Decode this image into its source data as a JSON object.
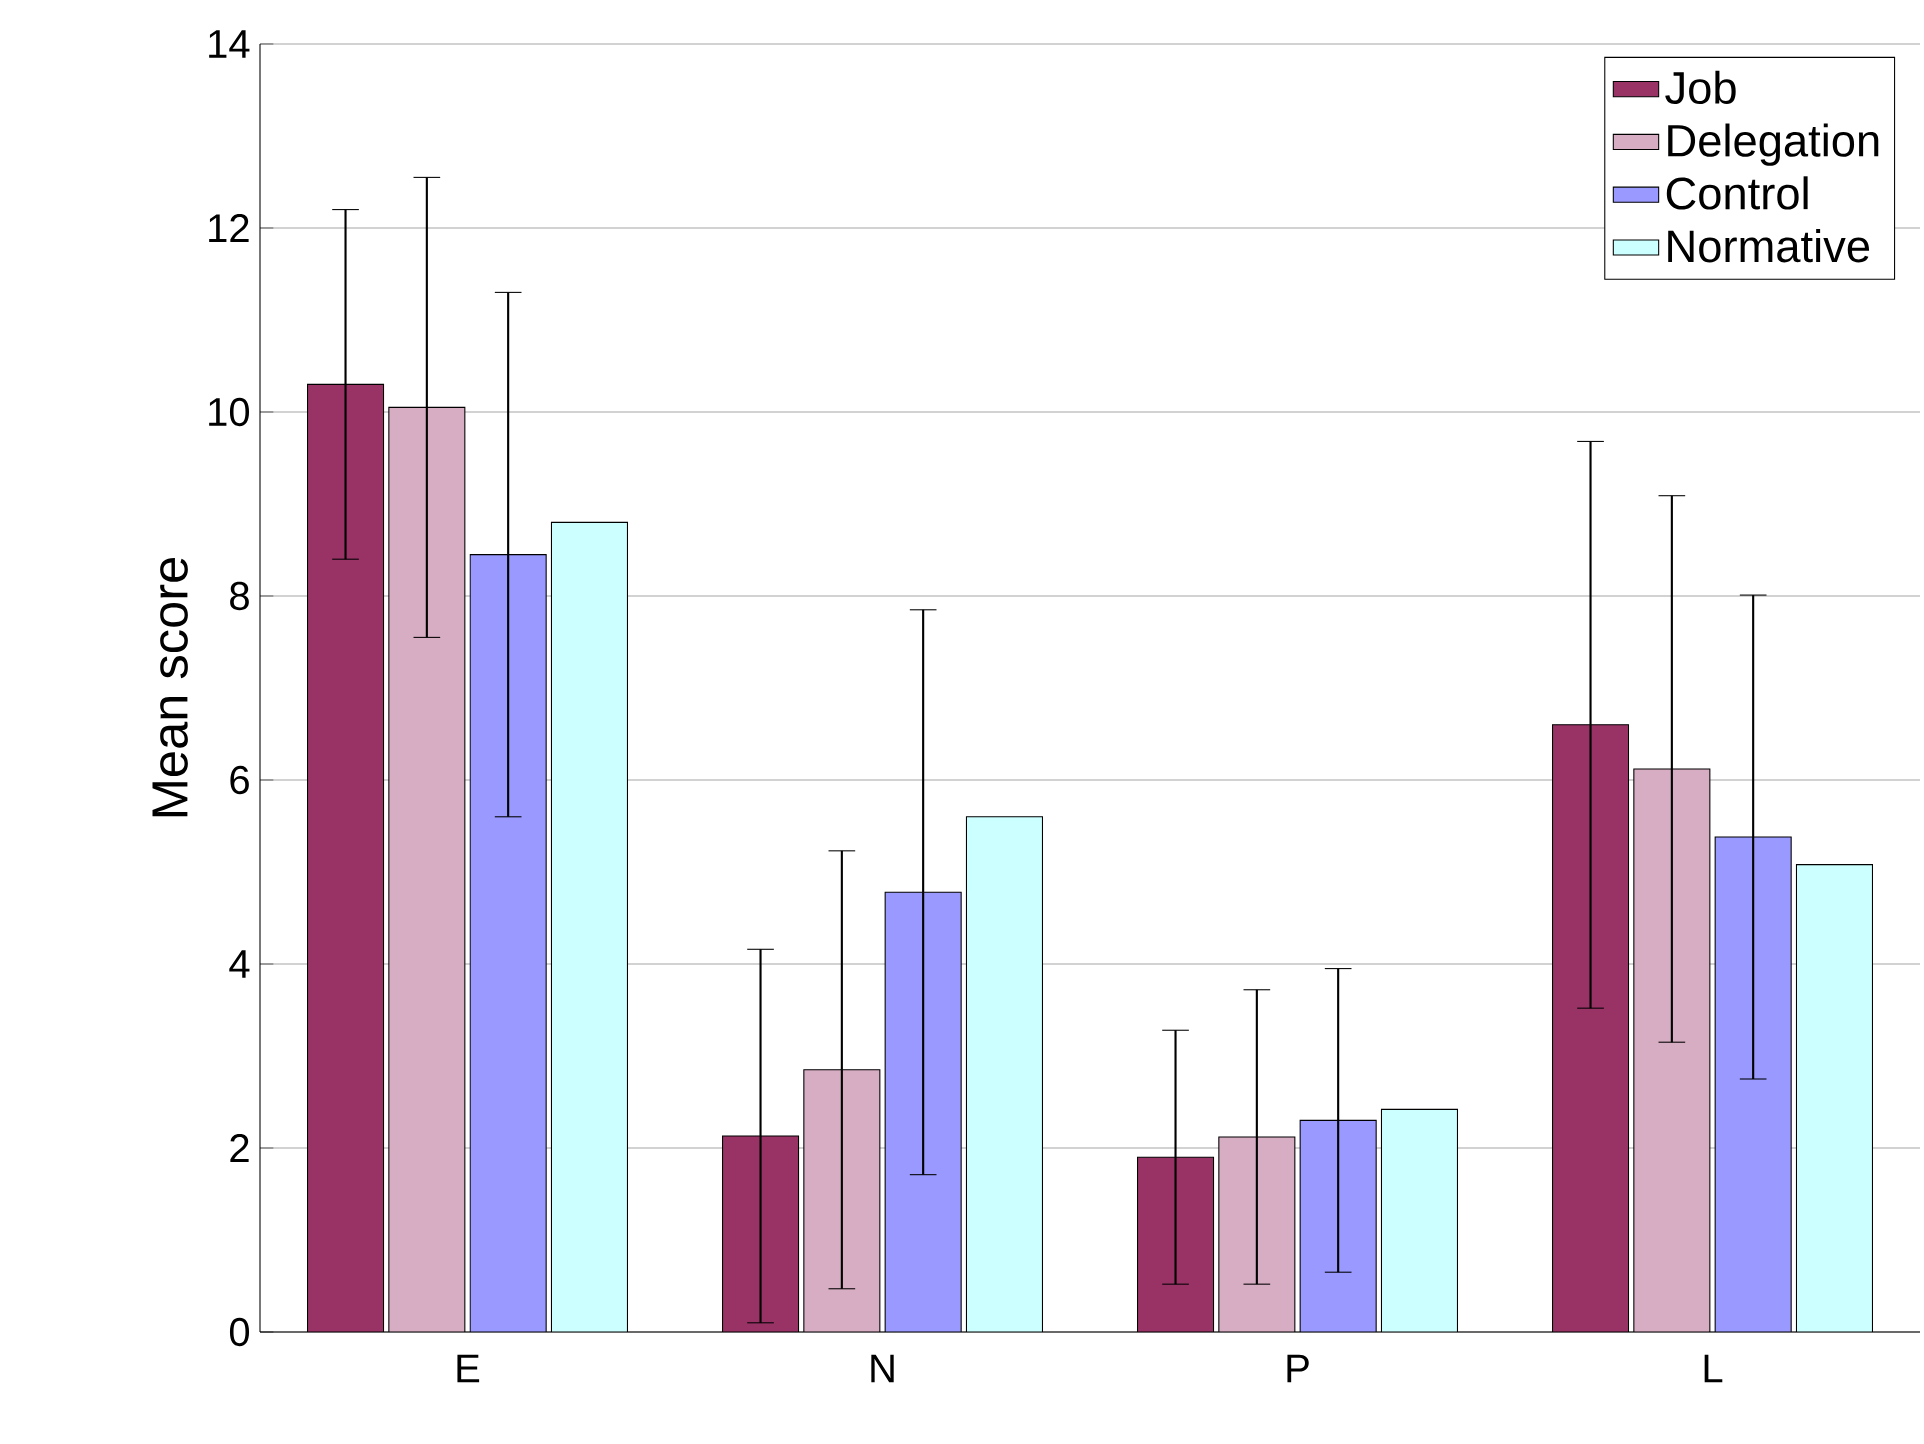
{
  "chart_data": {
    "type": "bar",
    "ylabel": "Mean score",
    "categories": [
      "E",
      "N",
      "P",
      "L"
    ],
    "series": [
      {
        "name": "Job",
        "color": "#993366",
        "values": [
          10.3,
          2.13,
          1.9,
          6.6
        ],
        "errors": [
          1.9,
          2.03,
          1.38,
          3.08
        ]
      },
      {
        "name": "Delegation",
        "color": "#d6adc2",
        "values": [
          10.05,
          2.85,
          2.12,
          6.12
        ],
        "errors": [
          2.5,
          2.38,
          1.6,
          2.97
        ]
      },
      {
        "name": "Control",
        "color": "#9999ff",
        "values": [
          8.45,
          4.78,
          2.3,
          5.38
        ],
        "errors": [
          2.85,
          3.07,
          1.65,
          2.63
        ]
      },
      {
        "name": "Normative",
        "color": "#ccffff",
        "values": [
          8.8,
          5.6,
          2.42,
          5.08
        ]
      }
    ],
    "ylim": [
      0,
      14
    ],
    "yticks": [
      0,
      2,
      4,
      6,
      8,
      10,
      12,
      14
    ],
    "grid": "y",
    "legend": "top right"
  }
}
